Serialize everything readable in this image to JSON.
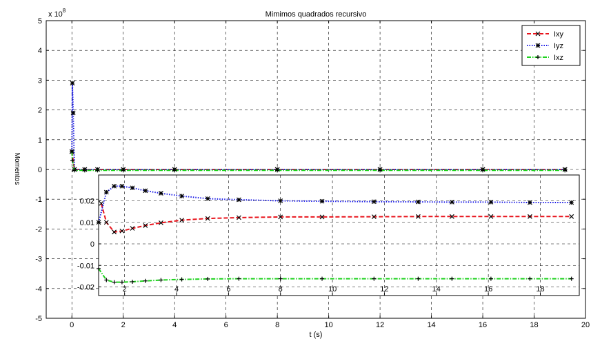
{
  "chart_data": {
    "type": "line",
    "title": "Mimimos quadrados recursivo",
    "xlabel": "t (s)",
    "ylabel": "Momentos",
    "y_multiplier": "x 10",
    "y_multiplier_exp": "8",
    "xlim": [
      -1,
      20
    ],
    "ylim": [
      -5,
      5
    ],
    "x_ticks": [
      0,
      2,
      4,
      6,
      8,
      10,
      12,
      14,
      16,
      18,
      20
    ],
    "y_ticks": [
      -5,
      -4,
      -3,
      -2,
      -1,
      0,
      1,
      2,
      3,
      4,
      5
    ],
    "grid": true,
    "legend_position": "top-right",
    "series": [
      {
        "name": "Ixy",
        "color": "#e8141c",
        "dash": "dashed",
        "marker": "x",
        "x": [
          0,
          0.1,
          0.5,
          1,
          2,
          4,
          8,
          12,
          16,
          19.2
        ],
        "y": [
          0.6,
          0,
          0,
          0,
          0,
          0,
          0,
          0,
          0,
          0
        ]
      },
      {
        "name": "Iyz",
        "color": "#1a1ae6",
        "dash": "dotted",
        "marker": "*",
        "x": [
          0,
          0.02,
          0.05,
          0.1,
          0.5,
          1,
          2,
          4,
          8,
          12,
          16,
          19.2
        ],
        "y": [
          0.6,
          2.9,
          1.9,
          0,
          0,
          0,
          0,
          0,
          0,
          0,
          0,
          0
        ]
      },
      {
        "name": "Ixz",
        "color": "#1ed21e",
        "dash": "dashdot",
        "marker": "+",
        "x": [
          0,
          0.02,
          0.1,
          0.5,
          1,
          2,
          4,
          8,
          12,
          16,
          19.2
        ],
        "y": [
          0.6,
          0.3,
          -0.03,
          -0.03,
          -0.03,
          -0.03,
          -0.03,
          -0.03,
          -0.03,
          -0.03,
          -0.03
        ]
      }
    ],
    "inset": {
      "xlim": [
        1,
        19.5
      ],
      "ylim": [
        -0.024,
        0.032
      ],
      "x_ticks": [
        2,
        4,
        6,
        8,
        10,
        12,
        14,
        16,
        18
      ],
      "x_tick_labels": [
        "2",
        "4",
        "6",
        "8",
        "10",
        "12",
        "14",
        "16",
        "18"
      ],
      "y_ticks": [
        -0.02,
        -0.01,
        0,
        0.01,
        0.02
      ],
      "y_tick_labels": [
        "-0.02",
        "-0.01",
        "0",
        "0.01",
        "0.02"
      ],
      "series": [
        {
          "name": "Ixy",
          "color": "#e8141c",
          "dash": "dashed",
          "marker": "x",
          "x": [
            1.1,
            1.3,
            1.6,
            1.9,
            2.3,
            2.8,
            3.4,
            4.2,
            5.2,
            6.4,
            8,
            9.6,
            11.6,
            13.3,
            14.6,
            16.1,
            17.6,
            19.2
          ],
          "y": [
            0.0188,
            0.01,
            0.0055,
            0.006,
            0.0072,
            0.0085,
            0.0098,
            0.011,
            0.0118,
            0.0122,
            0.0125,
            0.0125,
            0.0126,
            0.0127,
            0.0127,
            0.0127,
            0.0127,
            0.0127
          ]
        },
        {
          "name": "Iyz",
          "color": "#1a1ae6",
          "dash": "dotted",
          "marker": "*",
          "x": [
            1.0,
            1.3,
            1.6,
            1.9,
            2.3,
            2.8,
            3.4,
            4.2,
            5.2,
            6.4,
            8,
            9.6,
            11.6,
            13.3,
            14.6,
            16.1,
            17.6,
            19.2
          ],
          "y": [
            0.01,
            0.024,
            0.0268,
            0.0268,
            0.026,
            0.0247,
            0.0235,
            0.0222,
            0.021,
            0.0205,
            0.02,
            0.0198,
            0.0196,
            0.0195,
            0.0194,
            0.0194,
            0.0192,
            0.0192
          ]
        },
        {
          "name": "Ixz",
          "color": "#1ed21e",
          "dash": "dashdot",
          "marker": "+",
          "x": [
            1.0,
            1.3,
            1.6,
            1.9,
            2.3,
            2.8,
            3.4,
            4.2,
            5.2,
            6.4,
            8,
            9.6,
            11.6,
            13.3,
            14.6,
            16.1,
            17.6,
            19.2
          ],
          "y": [
            -0.0115,
            -0.0168,
            -0.0178,
            -0.0178,
            -0.0176,
            -0.0172,
            -0.0168,
            -0.0165,
            -0.0163,
            -0.0162,
            -0.0162,
            -0.0162,
            -0.0162,
            -0.0162,
            -0.0162,
            -0.0162,
            -0.0162,
            -0.0162
          ]
        }
      ]
    }
  }
}
